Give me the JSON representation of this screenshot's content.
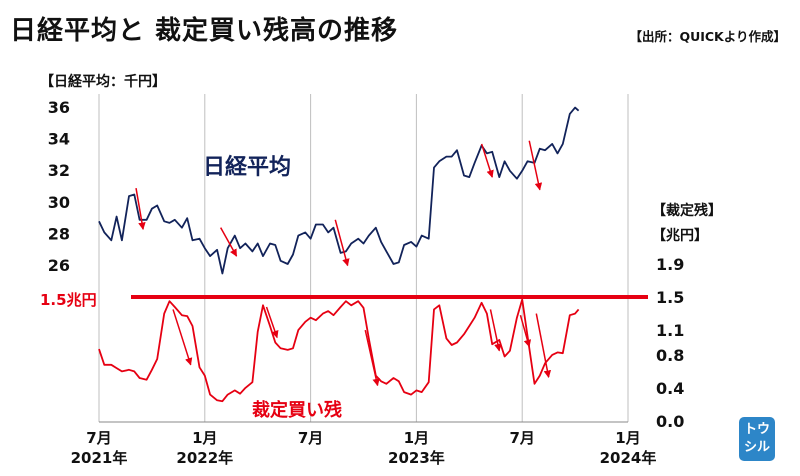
{
  "header": {
    "title": "日経平均と 裁定買い残高の推移",
    "source": "【出所：QUICKより作成】",
    "logo_text": "トウシル"
  },
  "chart_data": {
    "type": "line",
    "x": [
      "2021-07",
      "2021-08",
      "2021-09",
      "2021-10",
      "2021-11",
      "2021-12",
      "2022-01",
      "2022-02",
      "2022-03",
      "2022-04",
      "2022-05",
      "2022-06",
      "2022-07",
      "2022-08",
      "2022-09",
      "2022-10",
      "2022-11",
      "2022-12",
      "2023-01",
      "2023-02",
      "2023-03",
      "2023-04",
      "2023-05",
      "2023-06",
      "2023-07",
      "2023-08",
      "2023-09",
      "2023-10",
      "2023-11",
      "2023-12",
      "2024-01"
    ],
    "x_ticks": [
      {
        "x": "2021-07",
        "label": "7月",
        "year": "2021年"
      },
      {
        "x": "2022-01",
        "label": "1月",
        "year": "2022年"
      },
      {
        "x": "2022-07",
        "label": "7月",
        "year": ""
      },
      {
        "x": "2023-01",
        "label": "1月",
        "year": "2023年"
      },
      {
        "x": "2023-07",
        "label": "7月",
        "year": ""
      },
      {
        "x": "2024-01",
        "label": "1月",
        "year": "2024年"
      }
    ],
    "left_axis": {
      "label": "【日経平均：千円】",
      "ylim": [
        26,
        36
      ],
      "ticks": [
        "26",
        "28",
        "30",
        "32",
        "34",
        "36"
      ]
    },
    "right_axis": {
      "label1": "【裁定残】",
      "label2": "【兆円】",
      "ylim": [
        0.0,
        1.9
      ],
      "ticks": [
        "0.0",
        "0.4",
        "0.8",
        "1.1",
        "1.5",
        "1.9"
      ]
    },
    "threshold": {
      "value": 1.5,
      "label": "1.5兆円",
      "color": "#e60012"
    },
    "series": [
      {
        "name": "日経平均",
        "color": "#12235a",
        "axis": "left",
        "points": [
          [
            0,
            28.7
          ],
          [
            0.3,
            28.0
          ],
          [
            0.7,
            27.5
          ],
          [
            1.0,
            29.0
          ],
          [
            1.3,
            27.5
          ],
          [
            1.7,
            30.3
          ],
          [
            2.0,
            30.4
          ],
          [
            2.3,
            28.8
          ],
          [
            2.7,
            28.8
          ],
          [
            3.0,
            29.5
          ],
          [
            3.3,
            29.7
          ],
          [
            3.7,
            28.7
          ],
          [
            4.0,
            28.6
          ],
          [
            4.3,
            28.8
          ],
          [
            4.7,
            28.3
          ],
          [
            5.0,
            28.9
          ],
          [
            5.3,
            27.5
          ],
          [
            5.7,
            27.6
          ],
          [
            6.0,
            27.0
          ],
          [
            6.3,
            26.5
          ],
          [
            6.7,
            26.9
          ],
          [
            7.0,
            25.4
          ],
          [
            7.3,
            27.0
          ],
          [
            7.7,
            27.8
          ],
          [
            8.0,
            27.0
          ],
          [
            8.3,
            27.3
          ],
          [
            8.7,
            26.8
          ],
          [
            9.0,
            27.3
          ],
          [
            9.3,
            26.5
          ],
          [
            9.7,
            27.3
          ],
          [
            10.0,
            27.2
          ],
          [
            10.3,
            26.2
          ],
          [
            10.7,
            26.0
          ],
          [
            11.0,
            26.6
          ],
          [
            11.3,
            27.8
          ],
          [
            11.7,
            28.0
          ],
          [
            12.0,
            27.6
          ],
          [
            12.3,
            28.5
          ],
          [
            12.7,
            28.5
          ],
          [
            13.0,
            28.0
          ],
          [
            13.3,
            28.3
          ],
          [
            13.7,
            26.7
          ],
          [
            14.0,
            26.8
          ],
          [
            14.3,
            27.3
          ],
          [
            14.7,
            27.6
          ],
          [
            15.0,
            27.3
          ],
          [
            15.3,
            27.8
          ],
          [
            15.7,
            28.3
          ],
          [
            16.0,
            27.4
          ],
          [
            16.3,
            26.8
          ],
          [
            16.7,
            26.0
          ],
          [
            17.0,
            26.1
          ],
          [
            17.3,
            27.2
          ],
          [
            17.7,
            27.4
          ],
          [
            18.0,
            27.1
          ],
          [
            18.3,
            27.8
          ],
          [
            18.7,
            27.6
          ],
          [
            19.0,
            32.1
          ],
          [
            19.3,
            32.5
          ],
          [
            19.7,
            32.8
          ],
          [
            20.0,
            32.8
          ],
          [
            20.3,
            33.2
          ],
          [
            20.7,
            31.6
          ],
          [
            21.0,
            31.5
          ],
          [
            21.3,
            32.4
          ],
          [
            21.7,
            33.5
          ],
          [
            22.0,
            33.0
          ],
          [
            22.3,
            33.1
          ],
          [
            22.7,
            31.5
          ],
          [
            23.0,
            32.5
          ],
          [
            23.3,
            31.9
          ],
          [
            23.7,
            31.4
          ],
          [
            24.0,
            31.9
          ],
          [
            24.3,
            32.5
          ],
          [
            24.7,
            32.4
          ],
          [
            25.0,
            33.3
          ],
          [
            25.3,
            33.2
          ],
          [
            25.7,
            33.6
          ],
          [
            26.0,
            33.0
          ],
          [
            26.3,
            33.6
          ],
          [
            26.7,
            35.5
          ],
          [
            27.0,
            35.9
          ],
          [
            27.2,
            35.7
          ]
        ]
      },
      {
        "name": "裁定買い残",
        "color": "#e60012",
        "axis": "right",
        "points": [
          [
            0,
            0.87
          ],
          [
            0.3,
            0.68
          ],
          [
            0.7,
            0.68
          ],
          [
            1.0,
            0.64
          ],
          [
            1.3,
            0.6
          ],
          [
            1.7,
            0.62
          ],
          [
            2.0,
            0.6
          ],
          [
            2.3,
            0.52
          ],
          [
            2.7,
            0.5
          ],
          [
            3.0,
            0.62
          ],
          [
            3.3,
            0.75
          ],
          [
            3.7,
            1.3
          ],
          [
            4.0,
            1.45
          ],
          [
            4.3,
            1.38
          ],
          [
            4.7,
            1.28
          ],
          [
            5.0,
            1.27
          ],
          [
            5.3,
            1.15
          ],
          [
            5.7,
            0.65
          ],
          [
            6.0,
            0.55
          ],
          [
            6.3,
            0.32
          ],
          [
            6.7,
            0.25
          ],
          [
            7.0,
            0.24
          ],
          [
            7.3,
            0.32
          ],
          [
            7.7,
            0.37
          ],
          [
            8.0,
            0.33
          ],
          [
            8.3,
            0.4
          ],
          [
            8.7,
            0.47
          ],
          [
            9.0,
            1.08
          ],
          [
            9.3,
            1.4
          ],
          [
            9.7,
            1.15
          ],
          [
            10.0,
            0.95
          ],
          [
            10.3,
            0.88
          ],
          [
            10.7,
            0.86
          ],
          [
            11.0,
            0.88
          ],
          [
            11.3,
            1.1
          ],
          [
            11.7,
            1.2
          ],
          [
            12.0,
            1.25
          ],
          [
            12.3,
            1.22
          ],
          [
            12.7,
            1.3
          ],
          [
            13.0,
            1.33
          ],
          [
            13.3,
            1.28
          ],
          [
            13.7,
            1.38
          ],
          [
            14.0,
            1.45
          ],
          [
            14.3,
            1.4
          ],
          [
            14.7,
            1.45
          ],
          [
            15.0,
            1.37
          ],
          [
            15.3,
            1.0
          ],
          [
            15.7,
            0.55
          ],
          [
            16.0,
            0.48
          ],
          [
            16.3,
            0.45
          ],
          [
            16.7,
            0.52
          ],
          [
            17.0,
            0.48
          ],
          [
            17.3,
            0.35
          ],
          [
            17.7,
            0.32
          ],
          [
            18.0,
            0.37
          ],
          [
            18.3,
            0.35
          ],
          [
            18.7,
            0.47
          ],
          [
            19.0,
            1.35
          ],
          [
            19.3,
            1.4
          ],
          [
            19.7,
            1.0
          ],
          [
            20.0,
            0.92
          ],
          [
            20.3,
            0.95
          ],
          [
            20.7,
            1.05
          ],
          [
            21.0,
            1.15
          ],
          [
            21.3,
            1.25
          ],
          [
            21.7,
            1.43
          ],
          [
            22.0,
            1.3
          ],
          [
            22.3,
            0.93
          ],
          [
            22.7,
            0.98
          ],
          [
            23.0,
            0.78
          ],
          [
            23.3,
            0.85
          ],
          [
            23.7,
            1.25
          ],
          [
            24.0,
            1.47
          ],
          [
            24.3,
            1.03
          ],
          [
            24.7,
            0.45
          ],
          [
            25.0,
            0.55
          ],
          [
            25.3,
            0.7
          ],
          [
            25.7,
            0.8
          ],
          [
            26.0,
            0.83
          ],
          [
            26.3,
            0.82
          ],
          [
            26.7,
            1.28
          ],
          [
            27.0,
            1.3
          ],
          [
            27.2,
            1.35
          ]
        ]
      }
    ],
    "annotations": [
      {
        "text": "日経平均",
        "color": "#12235a"
      },
      {
        "text": "裁定買い残",
        "color": "#e60012"
      }
    ],
    "arrows": [
      {
        "series": "日経平均",
        "from": [
          2.1,
          30.8
        ],
        "to": [
          2.5,
          28.2
        ]
      },
      {
        "series": "日経平均",
        "from": [
          6.9,
          28.3
        ],
        "to": [
          7.8,
          26.5
        ]
      },
      {
        "series": "日経平均",
        "from": [
          13.4,
          28.8
        ],
        "to": [
          14.1,
          25.9
        ]
      },
      {
        "series": "日経平均",
        "from": [
          21.7,
          33.6
        ],
        "to": [
          22.3,
          31.5
        ]
      },
      {
        "series": "日経平均",
        "from": [
          24.4,
          33.8
        ],
        "to": [
          25.0,
          30.7
        ]
      },
      {
        "series": "裁定買い残",
        "from": [
          4.2,
          1.35
        ],
        "to": [
          5.2,
          0.68
        ]
      },
      {
        "series": "裁定買い残",
        "from": [
          9.5,
          1.38
        ],
        "to": [
          10.1,
          1.01
        ]
      },
      {
        "series": "裁定買い残",
        "from": [
          15.1,
          1.1
        ],
        "to": [
          15.8,
          0.43
        ]
      },
      {
        "series": "裁定買い残",
        "from": [
          22.2,
          1.35
        ],
        "to": [
          22.7,
          0.85
        ]
      },
      {
        "series": "裁定買い残",
        "from": [
          23.9,
          1.28
        ],
        "to": [
          24.4,
          0.9
        ]
      },
      {
        "series": "裁定買い残",
        "from": [
          24.8,
          1.3
        ],
        "to": [
          25.5,
          0.53
        ]
      }
    ]
  }
}
